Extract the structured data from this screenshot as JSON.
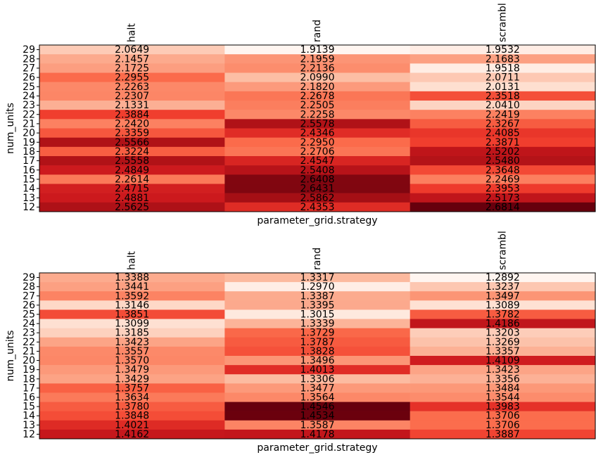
{
  "chart_data": [
    {
      "type": "heatmap",
      "title": "",
      "xlabel": "parameter_grid.strategy",
      "ylabel": "num_units",
      "colormap": "Reds",
      "color_range": [
        1.9139,
        2.6814
      ],
      "x_categories": [
        "halt",
        "rand",
        "scrambl"
      ],
      "y_categories": [
        "29",
        "28",
        "27",
        "26",
        "25",
        "24",
        "23",
        "22",
        "21",
        "20",
        "19",
        "18",
        "17",
        "16",
        "15",
        "14",
        "13",
        "12"
      ],
      "values": [
        [
          "2.0649",
          "1.9139",
          "1.9532"
        ],
        [
          "2.1457",
          "2.1959",
          "2.1683"
        ],
        [
          "2.1725",
          "2.2136",
          "1.9518"
        ],
        [
          "2.2955",
          "2.0990",
          "2.0711"
        ],
        [
          "2.2263",
          "2.1820",
          "2.0131"
        ],
        [
          "2.2307",
          "2.2678",
          "2.3518"
        ],
        [
          "2.1331",
          "2.2505",
          "2.0410"
        ],
        [
          "2.3884",
          "2.2258",
          "2.2419"
        ],
        [
          "2.2420",
          "2.5578",
          "2.3267"
        ],
        [
          "2.3359",
          "2.4346",
          "2.4085"
        ],
        [
          "2.5566",
          "2.2950",
          "2.3871"
        ],
        [
          "2.3224",
          "2.2706",
          "2.5202"
        ],
        [
          "2.5558",
          "2.4547",
          "2.5480"
        ],
        [
          "2.4849",
          "2.5408",
          "2.3648"
        ],
        [
          "2.2614",
          "2.6408",
          "2.2469"
        ],
        [
          "2.4715",
          "2.6431",
          "2.3953"
        ],
        [
          "2.4881",
          "2.5862",
          "2.5173"
        ],
        [
          "2.5625",
          "2.4353",
          "2.6814"
        ]
      ]
    },
    {
      "type": "heatmap",
      "title": "",
      "xlabel": "parameter_grid.strategy",
      "ylabel": "num_units",
      "colormap": "Reds",
      "color_range": [
        1.2892,
        1.4546
      ],
      "x_categories": [
        "halt",
        "rand",
        "scrambl"
      ],
      "y_categories": [
        "29",
        "28",
        "27",
        "26",
        "25",
        "24",
        "23",
        "22",
        "21",
        "20",
        "19",
        "18",
        "17",
        "16",
        "15",
        "14",
        "13",
        "12"
      ],
      "values": [
        [
          "1.3388",
          "1.3317",
          "1.2892"
        ],
        [
          "1.3441",
          "1.2970",
          "1.3237"
        ],
        [
          "1.3592",
          "1.3387",
          "1.3497"
        ],
        [
          "1.3146",
          "1.3395",
          "1.3089"
        ],
        [
          "1.3851",
          "1.3015",
          "1.3782"
        ],
        [
          "1.3099",
          "1.3339",
          "1.4186"
        ],
        [
          "1.3185",
          "1.3729",
          "1.3203"
        ],
        [
          "1.3423",
          "1.3787",
          "1.3269"
        ],
        [
          "1.3557",
          "1.3828",
          "1.3357"
        ],
        [
          "1.3570",
          "1.3496",
          "1.4109"
        ],
        [
          "1.3479",
          "1.4013",
          "1.3423"
        ],
        [
          "1.3429",
          "1.3306",
          "1.3356"
        ],
        [
          "1.3757",
          "1.3477",
          "1.3484"
        ],
        [
          "1.3634",
          "1.3564",
          "1.3544"
        ],
        [
          "1.3780",
          "1.4546",
          "1.3983"
        ],
        [
          "1.3848",
          "1.4534",
          "1.3706"
        ],
        [
          "1.4021",
          "1.3587",
          "1.3706"
        ],
        [
          "1.4162",
          "1.4178",
          "1.3887"
        ]
      ]
    }
  ]
}
